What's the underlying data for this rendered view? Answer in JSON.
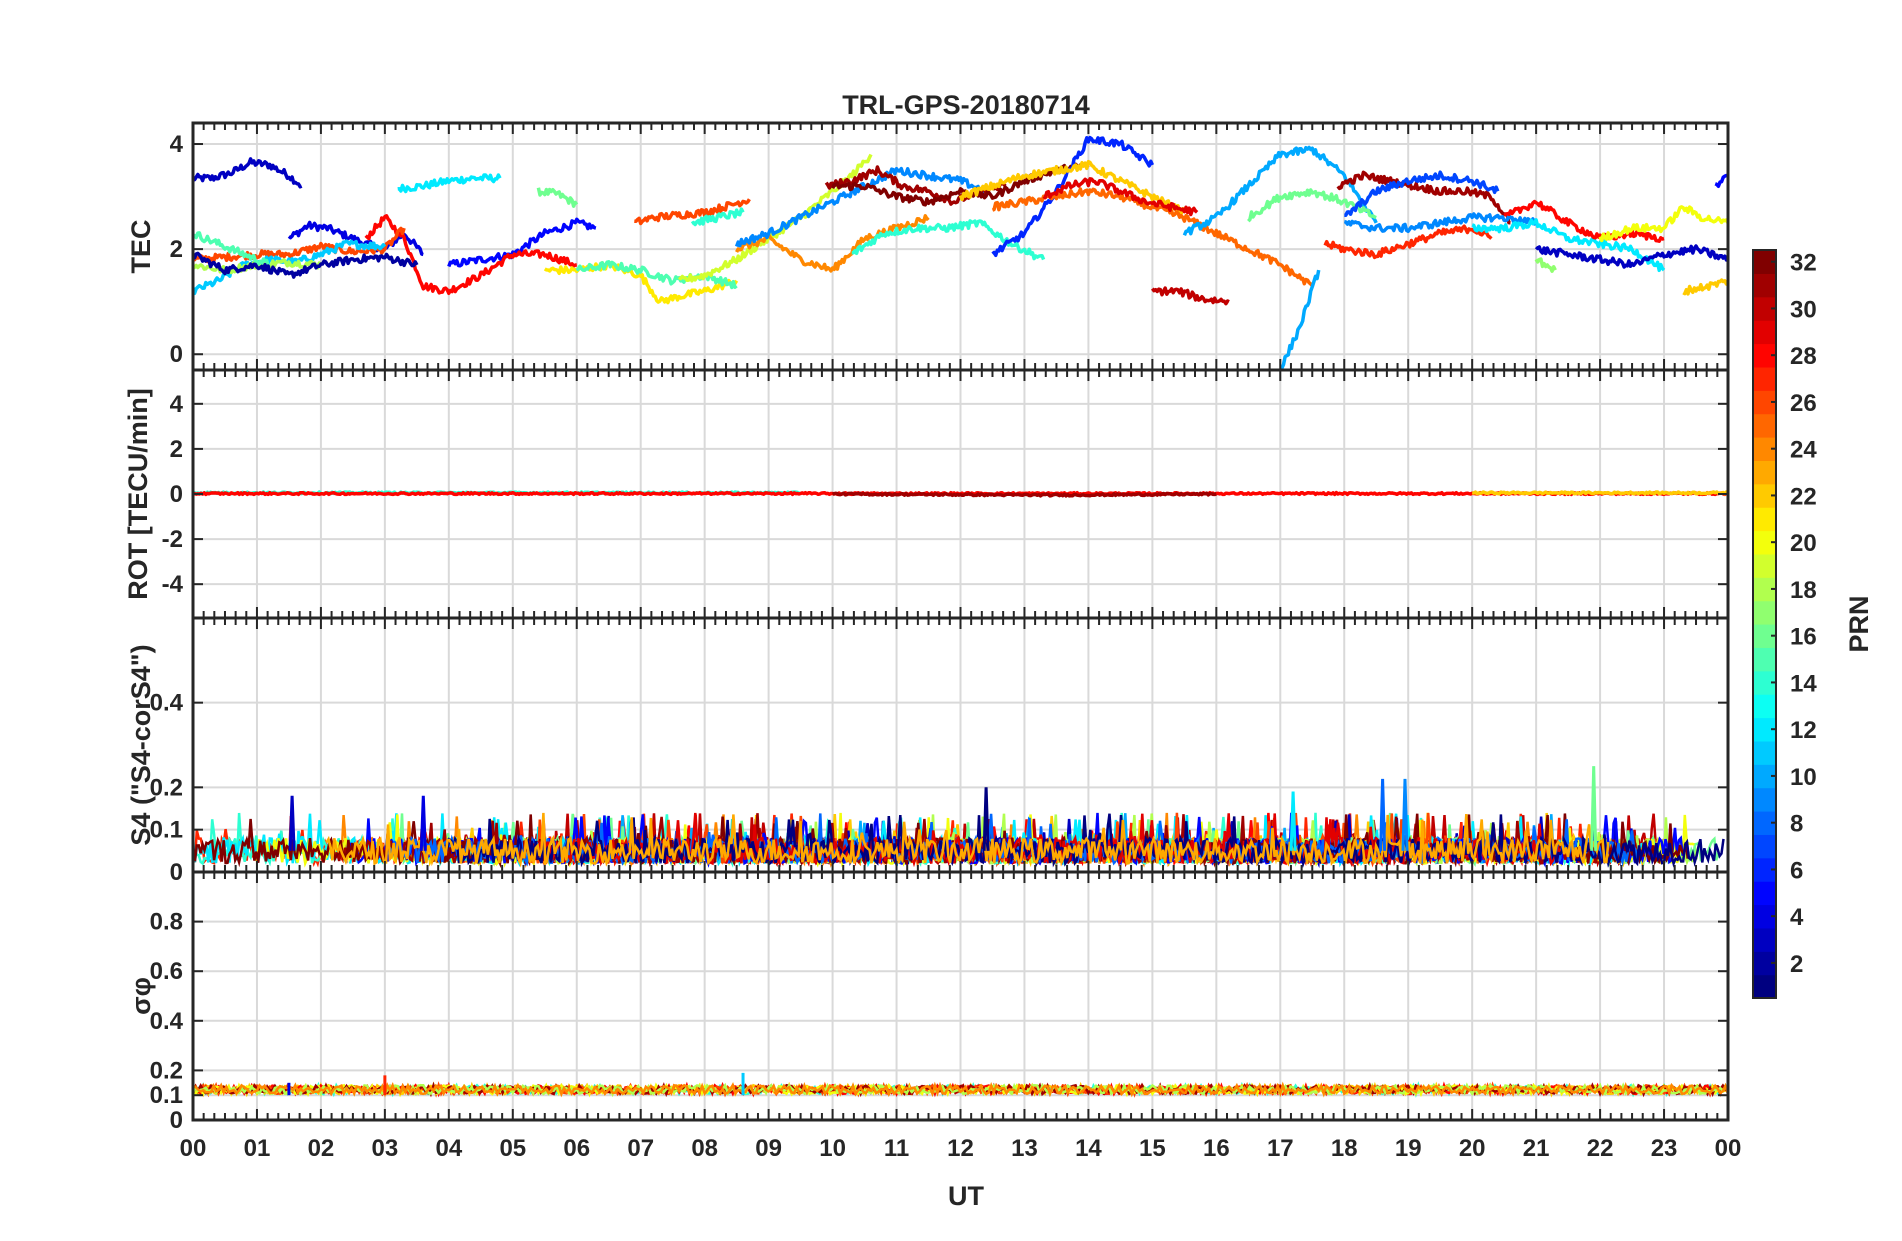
{
  "title": "TRL-GPS-20180714",
  "chart_data": [
    {
      "type": "line",
      "id": "tec",
      "ylabel": "TEC",
      "ylim": [
        -0.3,
        4.4
      ],
      "yticks": [
        "0",
        "2",
        "4"
      ],
      "ytick_values": [
        0,
        2,
        4
      ],
      "grid": true,
      "series": [
        {
          "prn": 3,
          "x": [
            0.0,
            0.3,
            0.6,
            0.9,
            1.2,
            1.5,
            1.7
          ],
          "y": [
            3.35,
            3.35,
            3.45,
            3.65,
            3.6,
            3.4,
            3.2
          ]
        },
        {
          "prn": 4,
          "x": [
            1.5,
            1.8,
            2.1,
            2.4,
            2.7,
            3.0,
            3.3,
            3.6
          ],
          "y": [
            2.2,
            2.45,
            2.4,
            2.25,
            2.1,
            2.0,
            2.3,
            1.9
          ]
        },
        {
          "prn": 12,
          "x": [
            3.2,
            3.6,
            4.0,
            4.4,
            4.8
          ],
          "y": [
            3.15,
            3.2,
            3.3,
            3.35,
            3.35
          ]
        },
        {
          "prn": 16,
          "x": [
            5.4,
            5.7,
            6.0
          ],
          "y": [
            3.1,
            3.05,
            2.85
          ]
        },
        {
          "prn": 5,
          "x": [
            4.0,
            4.5,
            5.0,
            5.5,
            6.0,
            6.3
          ],
          "y": [
            1.7,
            1.8,
            1.9,
            2.3,
            2.5,
            2.4
          ]
        },
        {
          "prn": 28,
          "x": [
            2.7,
            3.0,
            3.3,
            3.6,
            4.0,
            4.5,
            5.0,
            5.5,
            6.0
          ],
          "y": [
            2.2,
            2.6,
            2.2,
            1.3,
            1.2,
            1.5,
            1.9,
            1.9,
            1.7
          ]
        },
        {
          "prn": 26,
          "x": [
            0.0,
            0.5,
            1.0,
            1.5,
            2.0,
            2.5,
            3.0,
            3.3
          ],
          "y": [
            1.8,
            1.85,
            1.9,
            1.9,
            2.05,
            1.95,
            2.0,
            2.4
          ]
        },
        {
          "prn": 11,
          "x": [
            0.0,
            0.4,
            0.8,
            1.2,
            1.6,
            2.0,
            2.4,
            3.0
          ],
          "y": [
            1.2,
            1.4,
            1.7,
            1.8,
            1.75,
            1.9,
            2.1,
            2.05
          ]
        },
        {
          "prn": 18,
          "x": [
            0.0,
            0.5,
            1.0,
            1.5,
            2.0
          ],
          "y": [
            1.7,
            1.6,
            1.7,
            1.75,
            1.7
          ]
        },
        {
          "prn": 15,
          "x": [
            0.0,
            0.4,
            0.8,
            1.2
          ],
          "y": [
            2.3,
            2.1,
            1.9,
            1.7
          ]
        },
        {
          "prn": 2,
          "x": [
            0.0,
            0.5,
            1.0,
            1.5,
            2.0,
            2.5,
            3.0,
            3.5
          ],
          "y": [
            1.9,
            1.6,
            1.7,
            1.5,
            1.7,
            1.8,
            1.85,
            1.7
          ]
        },
        {
          "prn": 21,
          "x": [
            5.5,
            6.0,
            6.5,
            7.0,
            7.3,
            7.6,
            8.0,
            8.5
          ],
          "y": [
            1.6,
            1.6,
            1.7,
            1.5,
            1.0,
            1.1,
            1.2,
            1.4
          ]
        },
        {
          "prn": 15,
          "x": [
            6.0,
            6.5,
            7.0,
            7.5,
            8.0,
            8.5
          ],
          "y": [
            1.6,
            1.7,
            1.6,
            1.4,
            1.5,
            1.3
          ]
        },
        {
          "prn": 26,
          "x": [
            6.9,
            7.2,
            7.6,
            8.0,
            8.3,
            8.7
          ],
          "y": [
            2.5,
            2.6,
            2.65,
            2.7,
            2.8,
            2.95
          ]
        },
        {
          "prn": 14,
          "x": [
            7.8,
            8.2,
            8.6
          ],
          "y": [
            2.5,
            2.6,
            2.7
          ]
        },
        {
          "prn": 19,
          "x": [
            7.6,
            8.0,
            8.5,
            9.0,
            9.5,
            10.0,
            10.3,
            10.6
          ],
          "y": [
            1.4,
            1.5,
            1.8,
            2.2,
            2.6,
            3.1,
            3.4,
            3.8
          ]
        },
        {
          "prn": 24,
          "x": [
            8.5,
            9.0,
            9.5,
            10.0,
            10.5,
            11.0,
            11.5
          ],
          "y": [
            2.0,
            2.2,
            1.8,
            1.6,
            2.2,
            2.4,
            2.6
          ]
        },
        {
          "prn": 9,
          "x": [
            8.5,
            9.0,
            9.5,
            10.0,
            10.5,
            11.0,
            11.5,
            12.0,
            12.4
          ],
          "y": [
            2.1,
            2.3,
            2.6,
            2.9,
            3.2,
            3.5,
            3.4,
            3.3,
            3.1
          ]
        },
        {
          "prn": 31,
          "x": [
            9.9,
            10.3,
            10.7,
            11.1,
            11.5,
            11.9,
            12.3,
            12.7
          ],
          "y": [
            3.2,
            3.3,
            3.5,
            3.2,
            3.1,
            2.9,
            3.1,
            3.2
          ]
        },
        {
          "prn": 32,
          "x": [
            10.0,
            10.5,
            11.0,
            11.5,
            12.0,
            12.5,
            13.0,
            13.5,
            14.0
          ],
          "y": [
            3.2,
            3.2,
            3.0,
            2.9,
            3.1,
            3.0,
            3.3,
            3.5,
            3.6
          ]
        },
        {
          "prn": 14,
          "x": [
            10.3,
            10.8,
            11.3,
            11.8,
            12.3,
            12.8,
            13.3
          ],
          "y": [
            1.9,
            2.3,
            2.4,
            2.4,
            2.5,
            2.1,
            1.8
          ]
        },
        {
          "prn": 6,
          "x": [
            12.5,
            13.0,
            13.5,
            14.0,
            14.5,
            15.0
          ],
          "y": [
            1.9,
            2.3,
            3.1,
            4.1,
            4.0,
            3.6
          ]
        },
        {
          "prn": 22,
          "x": [
            12.0,
            12.5,
            13.0,
            13.5,
            14.0,
            14.5,
            15.0,
            15.5
          ],
          "y": [
            3.0,
            3.2,
            3.4,
            3.5,
            3.6,
            3.3,
            3.0,
            2.7
          ]
        },
        {
          "prn": 25,
          "x": [
            12.5,
            13.0,
            13.5,
            14.0,
            14.5,
            15.0,
            15.5,
            16.0,
            16.5,
            17.0,
            17.5
          ],
          "y": [
            2.8,
            2.9,
            3.0,
            3.1,
            3.0,
            2.8,
            2.6,
            2.3,
            2.0,
            1.7,
            1.3
          ]
        },
        {
          "prn": 29,
          "x": [
            13.3,
            13.7,
            14.1,
            14.5,
            14.9,
            15.3,
            15.7
          ],
          "y": [
            3.0,
            3.2,
            3.3,
            3.1,
            2.9,
            2.8,
            2.7
          ]
        },
        {
          "prn": 30,
          "x": [
            15.0,
            15.4,
            15.8,
            16.2
          ],
          "y": [
            1.2,
            1.2,
            1.05,
            1.0
          ]
        },
        {
          "prn": 10,
          "x": [
            17.0,
            17.3,
            17.6
          ],
          "y": [
            -0.3,
            0.5,
            1.6
          ]
        },
        {
          "prn": 10,
          "x": [
            15.5,
            16.0,
            16.5,
            17.0,
            17.5,
            18.0,
            18.5
          ],
          "y": [
            2.3,
            2.6,
            3.2,
            3.8,
            3.9,
            3.4,
            2.5
          ]
        },
        {
          "prn": 16,
          "x": [
            16.5,
            17.0,
            17.5,
            18.0,
            18.5
          ],
          "y": [
            2.6,
            3.0,
            3.1,
            2.9,
            2.6
          ]
        },
        {
          "prn": 27,
          "x": [
            17.7,
            18.0,
            18.5,
            19.0,
            19.5,
            20.0,
            20.3
          ],
          "y": [
            2.1,
            2.0,
            1.9,
            2.1,
            2.3,
            2.4,
            2.2
          ]
        },
        {
          "prn": 31,
          "x": [
            17.9,
            18.3,
            18.7,
            19.1,
            19.5,
            19.9,
            20.3,
            20.6
          ],
          "y": [
            3.2,
            3.4,
            3.3,
            3.2,
            3.1,
            3.1,
            3.0,
            2.5
          ]
        },
        {
          "prn": 7,
          "x": [
            18.0,
            18.5,
            19.0,
            19.5,
            20.0,
            20.4
          ],
          "y": [
            2.6,
            3.1,
            3.3,
            3.4,
            3.3,
            3.1
          ]
        },
        {
          "prn": 9,
          "x": [
            18.0,
            18.5,
            19.0,
            19.5,
            20.0,
            20.5,
            21.0
          ],
          "y": [
            2.5,
            2.4,
            2.4,
            2.5,
            2.6,
            2.6,
            2.5
          ]
        },
        {
          "prn": 12,
          "x": [
            20.0,
            20.5,
            21.0,
            21.5,
            22.0,
            22.5,
            23.0
          ],
          "y": [
            2.4,
            2.4,
            2.5,
            2.2,
            2.1,
            2.0,
            1.6
          ]
        },
        {
          "prn": 28,
          "x": [
            20.5,
            21.0,
            21.5,
            22.0,
            22.5,
            23.0
          ],
          "y": [
            2.6,
            2.9,
            2.5,
            2.2,
            2.3,
            2.2
          ]
        },
        {
          "prn": 3,
          "x": [
            21.0,
            21.5,
            22.0,
            22.5,
            23.0,
            23.5,
            24.0
          ],
          "y": [
            2.0,
            1.9,
            1.8,
            1.7,
            1.9,
            2.0,
            1.8
          ]
        },
        {
          "prn": 17,
          "x": [
            21.0,
            21.3
          ],
          "y": [
            1.8,
            1.6
          ]
        },
        {
          "prn": 20,
          "x": [
            22.0,
            22.5,
            23.0,
            23.3,
            23.6,
            24.0
          ],
          "y": [
            2.2,
            2.4,
            2.4,
            2.8,
            2.6,
            2.5
          ]
        },
        {
          "prn": 22,
          "x": [
            23.3,
            23.7,
            24.0
          ],
          "y": [
            1.2,
            1.3,
            1.4
          ]
        },
        {
          "prn": 5,
          "x": [
            23.8,
            24.0
          ],
          "y": [
            3.2,
            3.4
          ]
        }
      ]
    },
    {
      "type": "line",
      "id": "rot",
      "ylabel": "ROT [TECU/min]",
      "ylim": [
        -5.5,
        5.5
      ],
      "yticks": [
        "-4",
        "-2",
        "0",
        "2",
        "4"
      ],
      "ytick_values": [
        -4,
        -2,
        0,
        2,
        4
      ],
      "grid": true,
      "series": [
        {
          "prn": 14,
          "x": [
            0,
            7,
            9.5
          ],
          "y": [
            0.05,
            0.05,
            0.05
          ]
        },
        {
          "prn": 28,
          "x": [
            0,
            24
          ],
          "y": [
            0.02,
            0.02
          ]
        },
        {
          "prn": 31,
          "x": [
            10,
            13.5,
            16
          ],
          "y": [
            0.0,
            -0.05,
            0.0
          ]
        },
        {
          "prn": 22,
          "x": [
            20,
            24
          ],
          "y": [
            0.05,
            0.05
          ]
        }
      ]
    },
    {
      "type": "line",
      "id": "s4",
      "ylabel": "S4 (\"S4-corS4\")",
      "ylim": [
        0,
        0.6
      ],
      "yticks": [
        "0",
        "0.1",
        "0.2",
        "0.4"
      ],
      "ytick_values": [
        0,
        0.1,
        0.2,
        0.4
      ],
      "grid": true,
      "typical_range": [
        0.02,
        0.12
      ],
      "peaks": [
        {
          "x": 1.55,
          "y": 0.18,
          "prn": 3
        },
        {
          "x": 3.6,
          "y": 0.18,
          "prn": 4
        },
        {
          "x": 12.4,
          "y": 0.2,
          "prn": 1
        },
        {
          "x": 18.6,
          "y": 0.22,
          "prn": 8
        },
        {
          "x": 18.95,
          "y": 0.22,
          "prn": 9
        },
        {
          "x": 21.9,
          "y": 0.25,
          "prn": 16
        },
        {
          "x": 17.2,
          "y": 0.19,
          "prn": 12
        }
      ]
    },
    {
      "type": "line",
      "id": "sigma_phi",
      "ylabel": "σφ",
      "ylim": [
        0,
        1.0
      ],
      "yticks": [
        "0",
        "0.1",
        "0.2",
        "0.4",
        "0.6",
        "0.8"
      ],
      "ytick_values": [
        0,
        0.1,
        0.2,
        0.4,
        0.6,
        0.8
      ],
      "grid": true,
      "typical_range": [
        0.1,
        0.14
      ]
    }
  ],
  "x_axis": {
    "label": "UT",
    "xlim": [
      0,
      24
    ],
    "tick_labels": [
      "00",
      "01",
      "02",
      "03",
      "04",
      "05",
      "06",
      "07",
      "08",
      "09",
      "10",
      "11",
      "12",
      "13",
      "14",
      "15",
      "16",
      "17",
      "18",
      "19",
      "20",
      "21",
      "22",
      "23",
      "00"
    ]
  },
  "colorbar": {
    "label": "PRN",
    "colormap": "jet",
    "range": [
      1,
      32
    ],
    "tick_labels": [
      "2",
      "4",
      "6",
      "8",
      "10",
      "12",
      "14",
      "16",
      "18",
      "20",
      "22",
      "24",
      "26",
      "28",
      "30",
      "32"
    ],
    "tick_values": [
      2,
      4,
      6,
      8,
      10,
      12,
      14,
      16,
      18,
      20,
      22,
      24,
      26,
      28,
      30,
      32
    ]
  }
}
